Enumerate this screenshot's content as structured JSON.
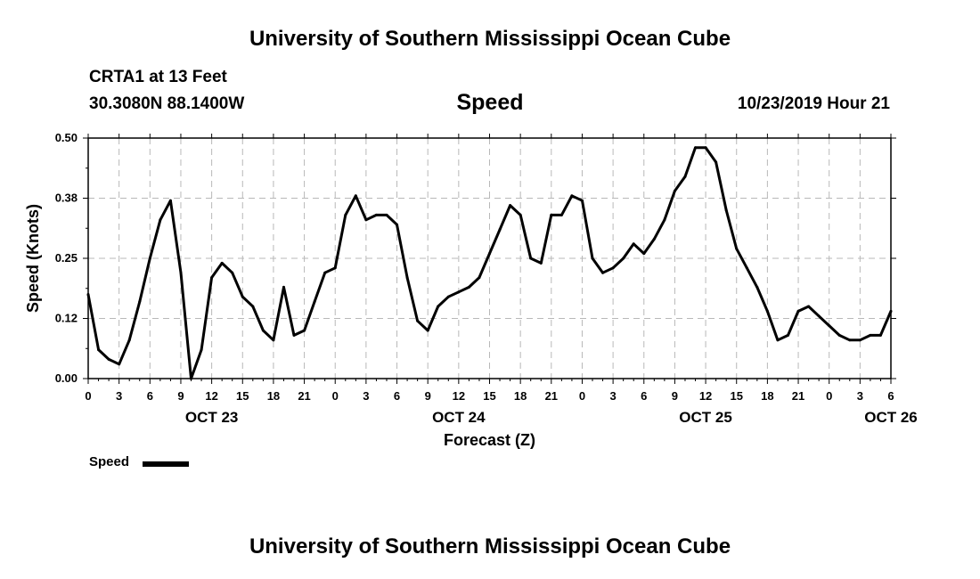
{
  "header": {
    "title_top": "University of Southern Mississippi Ocean Cube",
    "station": "CRTA1 at 13 Feet",
    "coords": "30.3080N 88.1400W",
    "variable": "Speed",
    "issued": "10/23/2019 Hour 21",
    "title_bottom": "University of Southern Mississippi Ocean Cube"
  },
  "legend": {
    "label": "Speed",
    "color": "#000000"
  },
  "chart_data": {
    "type": "line",
    "title": "Speed",
    "xlabel": "Forecast (Z)",
    "ylabel": "Speed (Knots)",
    "x_unit": "forecast hour from Oct 23 00Z",
    "xlim": [
      0,
      78
    ],
    "ylim": [
      0,
      0.5
    ],
    "y_ticks": [
      "0.00",
      "0.12",
      "0.25",
      "0.38",
      "0.50"
    ],
    "y_tick_values": [
      0,
      0.125,
      0.25,
      0.375,
      0.5
    ],
    "x_tick_labels": [
      "0",
      "3",
      "6",
      "9",
      "12",
      "15",
      "18",
      "21",
      "0",
      "3",
      "6",
      "9",
      "12",
      "15",
      "18",
      "21",
      "0",
      "3",
      "6",
      "9",
      "12",
      "15",
      "18",
      "21",
      "0",
      "3",
      "6"
    ],
    "day_labels": [
      {
        "label": "OCT 23",
        "hour": 12
      },
      {
        "label": "OCT 24",
        "hour": 36
      },
      {
        "label": "OCT 25",
        "hour": 60
      },
      {
        "label": "OCT 26",
        "hour": 78
      }
    ],
    "grid": true,
    "legend_position": "bottom-left",
    "series": [
      {
        "name": "Speed",
        "color": "#000000",
        "x": [
          0,
          1,
          2,
          3,
          4,
          5,
          6,
          7,
          8,
          9,
          10,
          11,
          12,
          13,
          14,
          15,
          16,
          17,
          18,
          19,
          20,
          21,
          22,
          23,
          24,
          25,
          26,
          27,
          28,
          29,
          30,
          31,
          32,
          33,
          34,
          35,
          36,
          37,
          38,
          39,
          40,
          41,
          42,
          43,
          44,
          45,
          46,
          47,
          48,
          49,
          50,
          51,
          52,
          53,
          54,
          55,
          56,
          57,
          58,
          59,
          60,
          61,
          62,
          63,
          64,
          65,
          66,
          67,
          68,
          69,
          70,
          71,
          72,
          73,
          74,
          75,
          76,
          77,
          78
        ],
        "y": [
          0.175,
          0.06,
          0.04,
          0.03,
          0.08,
          0.16,
          0.25,
          0.33,
          0.37,
          0.22,
          0.0,
          0.06,
          0.21,
          0.24,
          0.22,
          0.17,
          0.15,
          0.1,
          0.08,
          0.19,
          0.09,
          0.1,
          0.16,
          0.22,
          0.23,
          0.34,
          0.38,
          0.33,
          0.34,
          0.34,
          0.32,
          0.21,
          0.12,
          0.1,
          0.15,
          0.17,
          0.18,
          0.19,
          0.21,
          0.26,
          0.31,
          0.36,
          0.34,
          0.25,
          0.24,
          0.34,
          0.34,
          0.38,
          0.37,
          0.25,
          0.22,
          0.23,
          0.25,
          0.28,
          0.26,
          0.29,
          0.33,
          0.39,
          0.42,
          0.48,
          0.48,
          0.45,
          0.35,
          0.27,
          0.23,
          0.19,
          0.14,
          0.08,
          0.09,
          0.14,
          0.15,
          0.13,
          0.11,
          0.09,
          0.08,
          0.08,
          0.09,
          0.09,
          0.14
        ]
      }
    ]
  }
}
